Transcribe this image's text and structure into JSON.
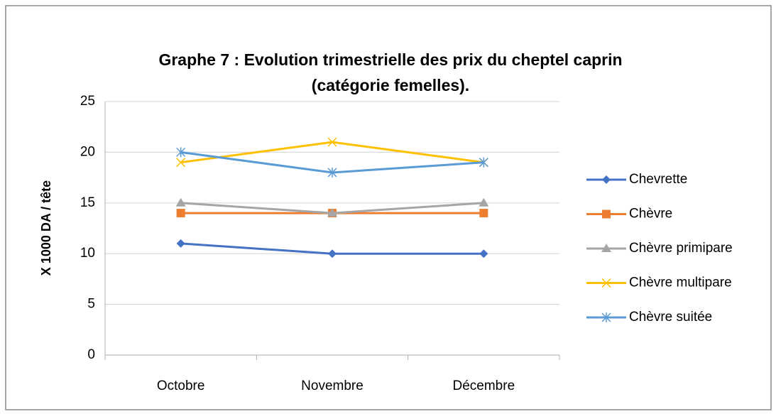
{
  "chart_data": {
    "type": "line",
    "title": [
      "Graphe 7 : Evolution trimestrielle des prix du cheptel caprin",
      "(catégorie  femelles)."
    ],
    "ylabel": "X 1000 DA / tête",
    "categories": [
      "Octobre",
      "Novembre",
      "Décembre"
    ],
    "series": [
      {
        "name": "Chevrette",
        "color": "#4472c4",
        "marker": "diamond",
        "values": [
          11,
          10,
          10
        ]
      },
      {
        "name": "Chèvre",
        "color": "#ed7d31",
        "marker": "square",
        "values": [
          14,
          14,
          14
        ]
      },
      {
        "name": "Chèvre primipare",
        "color": "#a5a5a5",
        "marker": "triangle",
        "values": [
          15,
          14,
          15
        ]
      },
      {
        "name": "Chèvre multipare",
        "color": "#ffc000",
        "marker": "x",
        "values": [
          19,
          21,
          19
        ]
      },
      {
        "name": "Chèvre suitée",
        "color": "#5b9bd5",
        "marker": "asterisk",
        "values": [
          20,
          18,
          19
        ]
      }
    ],
    "ylim": [
      0,
      25
    ],
    "yticks": [
      0,
      5,
      10,
      15,
      20,
      25
    ],
    "grid": true,
    "legend": "right"
  }
}
